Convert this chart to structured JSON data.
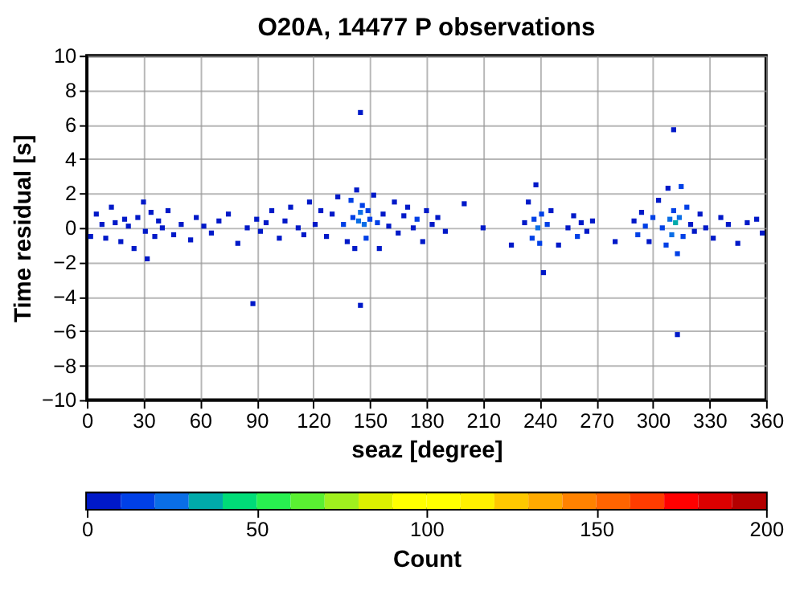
{
  "chart_data": {
    "type": "scatter",
    "title": "O20A, 14477 P observations",
    "xlabel": "seaz [degree]",
    "ylabel": "Time residual [s]",
    "clabel": "Count",
    "xlim": [
      0,
      360
    ],
    "xticks": [
      0,
      30,
      60,
      90,
      120,
      150,
      180,
      210,
      240,
      270,
      300,
      330,
      360
    ],
    "ylim": [
      -10,
      10
    ],
    "yticks": [
      -10,
      -8,
      -6,
      -4,
      -2,
      0,
      2,
      4,
      6,
      8,
      10
    ],
    "clim": [
      0,
      200
    ],
    "cticks": [
      0,
      50,
      100,
      150,
      200
    ],
    "grid": true,
    "marker": "square",
    "x": [
      2,
      5,
      8,
      10,
      13,
      15,
      18,
      20,
      22,
      25,
      27,
      30,
      31,
      32,
      34,
      36,
      38,
      40,
      43,
      46,
      50,
      55,
      58,
      62,
      66,
      70,
      75,
      80,
      85,
      88,
      90,
      92,
      95,
      98,
      102,
      105,
      108,
      112,
      115,
      118,
      121,
      124,
      127,
      130,
      133,
      136,
      138,
      140,
      141,
      142,
      143,
      144,
      145,
      145,
      145,
      146,
      147,
      148,
      149,
      150,
      152,
      154,
      155,
      157,
      160,
      163,
      165,
      168,
      170,
      173,
      175,
      178,
      180,
      183,
      186,
      190,
      200,
      210,
      225,
      232,
      234,
      236,
      237,
      238,
      239,
      240,
      241,
      242,
      244,
      246,
      250,
      255,
      258,
      260,
      262,
      265,
      268,
      280,
      290,
      292,
      294,
      296,
      298,
      300,
      303,
      305,
      307,
      308,
      309,
      310,
      311,
      311,
      312,
      313,
      313,
      314,
      315,
      316,
      318,
      320,
      322,
      325,
      328,
      332,
      336,
      340,
      345,
      350,
      355,
      358
    ],
    "values": [
      -0.5,
      0.8,
      0.2,
      -0.6,
      1.2,
      0.3,
      -0.8,
      0.5,
      0.1,
      -1.2,
      0.6,
      1.5,
      -0.2,
      -1.8,
      0.9,
      -0.5,
      0.4,
      0.0,
      1.0,
      -0.4,
      0.2,
      -0.7,
      0.6,
      0.1,
      -0.3,
      0.4,
      0.8,
      -0.9,
      0.0,
      -4.4,
      0.5,
      -0.2,
      0.3,
      1.0,
      -0.6,
      0.4,
      1.2,
      0.0,
      -0.4,
      1.5,
      0.2,
      1.0,
      -0.5,
      0.8,
      1.8,
      0.2,
      -0.8,
      1.6,
      0.6,
      -1.2,
      2.2,
      0.4,
      6.7,
      -4.5,
      0.9,
      1.3,
      0.2,
      -0.6,
      1.0,
      0.5,
      1.9,
      0.3,
      -1.2,
      0.8,
      0.1,
      1.5,
      -0.3,
      0.7,
      1.2,
      0.0,
      0.5,
      -0.8,
      1.0,
      0.2,
      0.6,
      -0.2,
      1.4,
      0.0,
      -1.0,
      0.3,
      1.5,
      -0.6,
      0.5,
      2.5,
      0.0,
      -0.9,
      0.8,
      -2.6,
      0.2,
      1.0,
      -1.0,
      0.0,
      0.7,
      -0.5,
      0.3,
      -0.2,
      0.4,
      -0.8,
      0.4,
      -0.4,
      0.9,
      0.1,
      -0.8,
      0.6,
      1.6,
      0.0,
      -1.0,
      2.3,
      0.5,
      -0.4,
      5.7,
      1.0,
      0.3,
      -1.5,
      -6.2,
      0.6,
      2.4,
      -0.5,
      1.2,
      0.2,
      -0.2,
      0.8,
      0.0,
      -0.6,
      0.6,
      0.2,
      -0.9,
      0.3,
      0.5,
      -0.3
    ],
    "cvalues": [
      2,
      2,
      3,
      4,
      2,
      5,
      4,
      2,
      3,
      2,
      3,
      2,
      6,
      2,
      4,
      3,
      5,
      2,
      3,
      2,
      2,
      2,
      2,
      3,
      2,
      2,
      3,
      2,
      4,
      1,
      5,
      3,
      2,
      3,
      4,
      5,
      2,
      6,
      3,
      2,
      4,
      3,
      3,
      5,
      3,
      10,
      8,
      12,
      18,
      9,
      8,
      24,
      1,
      1,
      20,
      15,
      22,
      12,
      14,
      16,
      6,
      10,
      5,
      8,
      9,
      5,
      7,
      9,
      6,
      8,
      10,
      4,
      6,
      5,
      4,
      2,
      1,
      1,
      1,
      8,
      6,
      12,
      18,
      4,
      22,
      10,
      15,
      2,
      12,
      8,
      5,
      9,
      7,
      10,
      6,
      4,
      3,
      1,
      6,
      12,
      8,
      14,
      6,
      10,
      8,
      14,
      10,
      8,
      24,
      20,
      1,
      18,
      34,
      12,
      1,
      22,
      10,
      14,
      12,
      9,
      6,
      8,
      5,
      3,
      4,
      3,
      3,
      2,
      3,
      2
    ]
  }
}
